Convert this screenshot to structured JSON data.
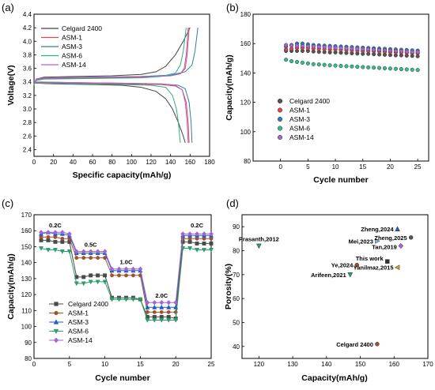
{
  "colors": {
    "celgard": "#444444",
    "asm1": "#e8434d",
    "asm3": "#2e7fa0",
    "asm6": "#2fae7e",
    "asm14": "#a865d8",
    "c_celgard": "#4a4a4a",
    "c_asm1": "#a0522d",
    "c_asm3": "#1f5fbf",
    "c_asm6": "#2e9e6a",
    "c_asm14": "#a365d1"
  },
  "chart_data": [
    {
      "panel": "(a)",
      "type": "line",
      "xlabel": "Specific capacity(mAh/g)",
      "ylabel": "Voltage(V)",
      "xlim": [
        0,
        180
      ],
      "ylim": [
        2.3,
        4.4
      ],
      "xticks": [
        "0",
        "20",
        "40",
        "60",
        "80",
        "100",
        "120",
        "140",
        "160",
        "180"
      ],
      "yticks": [
        "2.4",
        "2.6",
        "2.8",
        "3.0",
        "3.2",
        "3.4",
        "3.6",
        "3.8",
        "4.0",
        "4.2",
        "4.4"
      ],
      "legend": [
        "Celgard 2400",
        "ASM-1",
        "ASM-3",
        "ASM-6",
        "ASM-14"
      ],
      "series": [
        {
          "name": "Celgard 2400",
          "color_key": "celgard",
          "charge": [
            [
              0,
              3.36
            ],
            [
              2,
              3.44
            ],
            [
              10,
              3.47
            ],
            [
              40,
              3.48
            ],
            [
              80,
              3.49
            ],
            [
              110,
              3.51
            ],
            [
              125,
              3.55
            ],
            [
              135,
              3.63
            ],
            [
              145,
              3.8
            ],
            [
              153,
              4.0
            ],
            [
              160,
              4.2
            ]
          ],
          "discharge": [
            [
              0,
              3.42
            ],
            [
              2,
              3.38
            ],
            [
              20,
              3.37
            ],
            [
              60,
              3.36
            ],
            [
              90,
              3.35
            ],
            [
              110,
              3.32
            ],
            [
              125,
              3.26
            ],
            [
              135,
              3.15
            ],
            [
              142,
              3.0
            ],
            [
              148,
              2.8
            ],
            [
              153,
              2.6
            ],
            [
              155,
              2.5
            ]
          ]
        },
        {
          "name": "ASM-1",
          "color_key": "asm1",
          "charge": [
            [
              0,
              3.36
            ],
            [
              2,
              3.43
            ],
            [
              10,
              3.45
            ],
            [
              60,
              3.46
            ],
            [
              110,
              3.47
            ],
            [
              140,
              3.49
            ],
            [
              150,
              3.52
            ],
            [
              155,
              3.6
            ],
            [
              157,
              3.8
            ],
            [
              158,
              4.0
            ],
            [
              159,
              4.2
            ]
          ],
          "discharge": [
            [
              0,
              3.41
            ],
            [
              2,
              3.39
            ],
            [
              40,
              3.38
            ],
            [
              90,
              3.37
            ],
            [
              130,
              3.36
            ],
            [
              145,
              3.34
            ],
            [
              152,
              3.28
            ],
            [
              156,
              3.1
            ],
            [
              158,
              2.8
            ],
            [
              159,
              2.5
            ]
          ]
        },
        {
          "name": "ASM-3",
          "color_key": "asm3",
          "charge": [
            [
              0,
              3.36
            ],
            [
              2,
              3.44
            ],
            [
              10,
              3.46
            ],
            [
              60,
              3.47
            ],
            [
              110,
              3.48
            ],
            [
              140,
              3.5
            ],
            [
              155,
              3.55
            ],
            [
              162,
              3.65
            ],
            [
              165,
              3.85
            ],
            [
              168,
              4.2
            ]
          ],
          "discharge": [
            [
              0,
              3.42
            ],
            [
              2,
              3.4
            ],
            [
              40,
              3.39
            ],
            [
              90,
              3.38
            ],
            [
              130,
              3.37
            ],
            [
              148,
              3.35
            ],
            [
              155,
              3.3
            ],
            [
              159,
              3.1
            ],
            [
              161,
              2.8
            ],
            [
              162,
              2.5
            ]
          ]
        },
        {
          "name": "ASM-6",
          "color_key": "asm6",
          "charge": [
            [
              0,
              3.35
            ],
            [
              2,
              3.42
            ],
            [
              10,
              3.44
            ],
            [
              60,
              3.45
            ],
            [
              110,
              3.46
            ],
            [
              130,
              3.48
            ],
            [
              145,
              3.53
            ],
            [
              150,
              3.65
            ],
            [
              153,
              3.85
            ],
            [
              156,
              4.2
            ]
          ],
          "discharge": [
            [
              0,
              3.4
            ],
            [
              2,
              3.38
            ],
            [
              40,
              3.37
            ],
            [
              90,
              3.36
            ],
            [
              120,
              3.35
            ],
            [
              135,
              3.32
            ],
            [
              142,
              3.2
            ],
            [
              146,
              3.0
            ],
            [
              148,
              2.8
            ],
            [
              150,
              2.5
            ]
          ]
        },
        {
          "name": "ASM-14",
          "color_key": "asm14",
          "charge": [
            [
              0,
              3.36
            ],
            [
              2,
              3.44
            ],
            [
              10,
              3.46
            ],
            [
              60,
              3.47
            ],
            [
              110,
              3.48
            ],
            [
              140,
              3.49
            ],
            [
              150,
              3.52
            ],
            [
              154,
              3.6
            ],
            [
              156,
              3.8
            ],
            [
              158,
              4.2
            ]
          ],
          "discharge": [
            [
              0,
              3.42
            ],
            [
              2,
              3.4
            ],
            [
              40,
              3.39
            ],
            [
              90,
              3.38
            ],
            [
              130,
              3.37
            ],
            [
              145,
              3.35
            ],
            [
              152,
              3.28
            ],
            [
              155,
              3.1
            ],
            [
              157,
              2.8
            ],
            [
              158,
              2.5
            ]
          ]
        }
      ]
    },
    {
      "panel": "(b)",
      "type": "scatter",
      "xlabel": "Cycle number",
      "ylabel": "Capacity(mAh/g)",
      "xlim": [
        -5,
        27
      ],
      "ylim": [
        80,
        180
      ],
      "xticks": [
        "0",
        "5",
        "10",
        "15",
        "20",
        "25"
      ],
      "yticks": [
        "80",
        "100",
        "120",
        "140",
        "160",
        "180"
      ],
      "legend": [
        "Celgard 2400",
        "ASM-1",
        "ASM-3",
        "ASM-6",
        "ASM-14"
      ],
      "series": [
        {
          "name": "Celgard 2400",
          "color_key": "celgard",
          "values": [
            155,
            155,
            155,
            155,
            155,
            154.6,
            154.4,
            154.2,
            154,
            154,
            153.8,
            153.6,
            153.4,
            153.2,
            153,
            153,
            152.8,
            152.6,
            152.4,
            152.2,
            152,
            152,
            151.8,
            151.6,
            151.4
          ]
        },
        {
          "name": "ASM-1",
          "color_key": "asm1",
          "values": [
            156,
            156.5,
            157,
            157,
            156.8,
            156.6,
            156.4,
            156.2,
            156,
            156,
            155.8,
            155.6,
            155.4,
            155.2,
            155,
            155,
            154.8,
            154.6,
            154.4,
            154.2,
            154,
            154,
            153.8,
            153.6,
            153.4
          ]
        },
        {
          "name": "ASM-3",
          "color_key": "asm3",
          "values": [
            158,
            159,
            160,
            160,
            159.5,
            159,
            158.8,
            158.6,
            158.4,
            158.2,
            158,
            157.8,
            157.6,
            157.4,
            157.2,
            157,
            156.8,
            156.6,
            156.4,
            156.2,
            156,
            155.8,
            155.6,
            155.4,
            155.2
          ]
        },
        {
          "name": "ASM-6",
          "color_key": "asm6",
          "values": [
            149,
            148,
            147.5,
            147,
            146.5,
            146,
            145.8,
            145.5,
            145.2,
            145,
            144.8,
            144.6,
            144.4,
            144.2,
            144,
            143.8,
            143.6,
            143.4,
            143.2,
            143,
            142.8,
            142.6,
            142.4,
            142.2,
            142
          ]
        },
        {
          "name": "ASM-14",
          "color_key": "asm14",
          "values": [
            159,
            158.8,
            158.5,
            158.3,
            158.1,
            158,
            157.8,
            157.6,
            157.4,
            157.2,
            157,
            156.8,
            156.6,
            156.4,
            156.2,
            156,
            155.8,
            155.6,
            155.4,
            155.2,
            155,
            154.8,
            154.6,
            154.4,
            154.2
          ]
        }
      ]
    },
    {
      "panel": "(c)",
      "type": "line",
      "xlabel": "Cycle number",
      "ylabel": "Capacity(mAh/g)",
      "xlim": [
        0,
        25
      ],
      "ylim": [
        80,
        170
      ],
      "xticks": [
        "0",
        "5",
        "10",
        "15",
        "20",
        "25"
      ],
      "yticks": [
        "80",
        "90",
        "100",
        "110",
        "120",
        "130",
        "140",
        "150",
        "160",
        "170"
      ],
      "rate_labels": [
        "0.2C",
        "0.5C",
        "1.0C",
        "2.0C",
        "0.2C"
      ],
      "rate_label_positions": [
        [
          3,
          162
        ],
        [
          8,
          150
        ],
        [
          13,
          139
        ],
        [
          18,
          118
        ],
        [
          23,
          162
        ]
      ],
      "legend": [
        "Celgard 2400",
        "ASM-1",
        "ASM-3",
        "ASM-6",
        "ASM-14"
      ],
      "x": [
        1,
        2,
        3,
        4,
        5,
        6,
        7,
        8,
        9,
        10,
        11,
        12,
        13,
        14,
        15,
        16,
        17,
        18,
        19,
        20,
        21,
        22,
        23,
        24,
        25
      ],
      "series": [
        {
          "name": "Celgard 2400",
          "color_key": "c_celgard",
          "values": [
            154,
            154,
            153,
            153,
            153,
            131,
            131,
            132,
            132,
            132,
            118,
            118,
            118,
            118,
            117,
            106,
            106,
            106,
            106,
            105,
            153,
            153,
            152,
            152,
            152
          ]
        },
        {
          "name": "ASM-1",
          "color_key": "c_asm1",
          "values": [
            156,
            156,
            156,
            155,
            155,
            143,
            143,
            143,
            143,
            143,
            132,
            132,
            132,
            132,
            132,
            109,
            109,
            109,
            109,
            109,
            155,
            155,
            155,
            155,
            155
          ]
        },
        {
          "name": "ASM-3",
          "color_key": "c_asm3",
          "values": [
            158,
            159,
            158,
            158,
            157,
            146,
            146,
            146,
            146,
            146,
            135,
            135,
            135,
            135,
            135,
            112,
            112,
            112,
            112,
            112,
            157,
            157,
            157,
            157,
            157
          ]
        },
        {
          "name": "ASM-6",
          "color_key": "c_asm6",
          "values": [
            149,
            148,
            148,
            147,
            147,
            127,
            127,
            128,
            128,
            128,
            117,
            117,
            117,
            117,
            117,
            104,
            104,
            104,
            104,
            104,
            149,
            149,
            148,
            148,
            148
          ]
        },
        {
          "name": "ASM-14",
          "color_key": "c_asm14",
          "values": [
            159,
            159,
            159,
            159,
            158,
            147,
            147,
            147,
            147,
            147,
            136,
            136,
            136,
            136,
            136,
            115,
            115,
            115,
            115,
            115,
            158,
            158,
            158,
            158,
            158
          ]
        }
      ]
    },
    {
      "panel": "(d)",
      "type": "scatter",
      "xlabel": "Capacity(mAh/g)",
      "ylabel": "Porosity(%)",
      "xlim": [
        115,
        170
      ],
      "ylim": [
        35,
        95
      ],
      "xticks": [
        "120",
        "130",
        "140",
        "150",
        "160",
        "170"
      ],
      "yticks": [
        "40",
        "50",
        "60",
        "70",
        "80",
        "90"
      ],
      "points": [
        {
          "label": "Prasanth,2012",
          "x": 120,
          "y": 82,
          "color": "#2e9e6a",
          "marker": "tri-down"
        },
        {
          "label": "Zheng,2024",
          "x": 161,
          "y": 89,
          "color": "#1f5fbf",
          "marker": "tri-up"
        },
        {
          "label": "Mei,2023",
          "x": 155,
          "y": 84,
          "color": "#7fb8c9",
          "marker": "tri-right"
        },
        {
          "label": "Zheng,2025",
          "x": 165,
          "y": 85.5,
          "color": "#555555",
          "marker": "circle"
        },
        {
          "label": "Tan,2019",
          "x": 162,
          "y": 82,
          "color": "#a365d1",
          "marker": "diamond"
        },
        {
          "label": "This work",
          "x": 158,
          "y": 75.5,
          "color": "#333333",
          "marker": "square"
        },
        {
          "label": "Ye,2024",
          "x": 149,
          "y": 74,
          "color": "#a0522d",
          "marker": "circle"
        },
        {
          "label": "Yanilmaz,2015",
          "x": 161,
          "y": 73,
          "color": "#c9a227",
          "marker": "tri-left"
        },
        {
          "label": "Arifeen,2021",
          "x": 147,
          "y": 70,
          "color": "#2e9e6a",
          "marker": "tri-down"
        },
        {
          "label": "Celgard 2400",
          "x": 155,
          "y": 41,
          "color": "#a0522d",
          "marker": "circle"
        }
      ]
    }
  ]
}
